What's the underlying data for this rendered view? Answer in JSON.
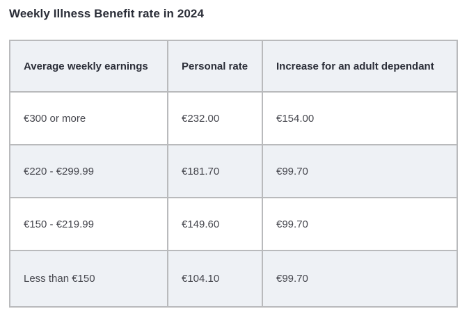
{
  "title": "Weekly Illness Benefit rate in 2024",
  "colors": {
    "header_bg": "#eef1f5",
    "alt_row_bg": "#eef1f5",
    "border": "#b9babc",
    "title_text": "#2b2e38",
    "cell_text": "#45464d"
  },
  "table": {
    "headers": [
      "Average weekly earnings",
      "Personal rate",
      "Increase for an adult dependant"
    ],
    "rows": [
      [
        "€300 or more",
        "€232.00",
        "€154.00"
      ],
      [
        "€220 - €299.99",
        "€181.70",
        "€99.70"
      ],
      [
        "€150 - €219.99",
        "€149.60",
        "€99.70"
      ],
      [
        "Less than €150",
        "€104.10",
        "€99.70"
      ]
    ]
  }
}
